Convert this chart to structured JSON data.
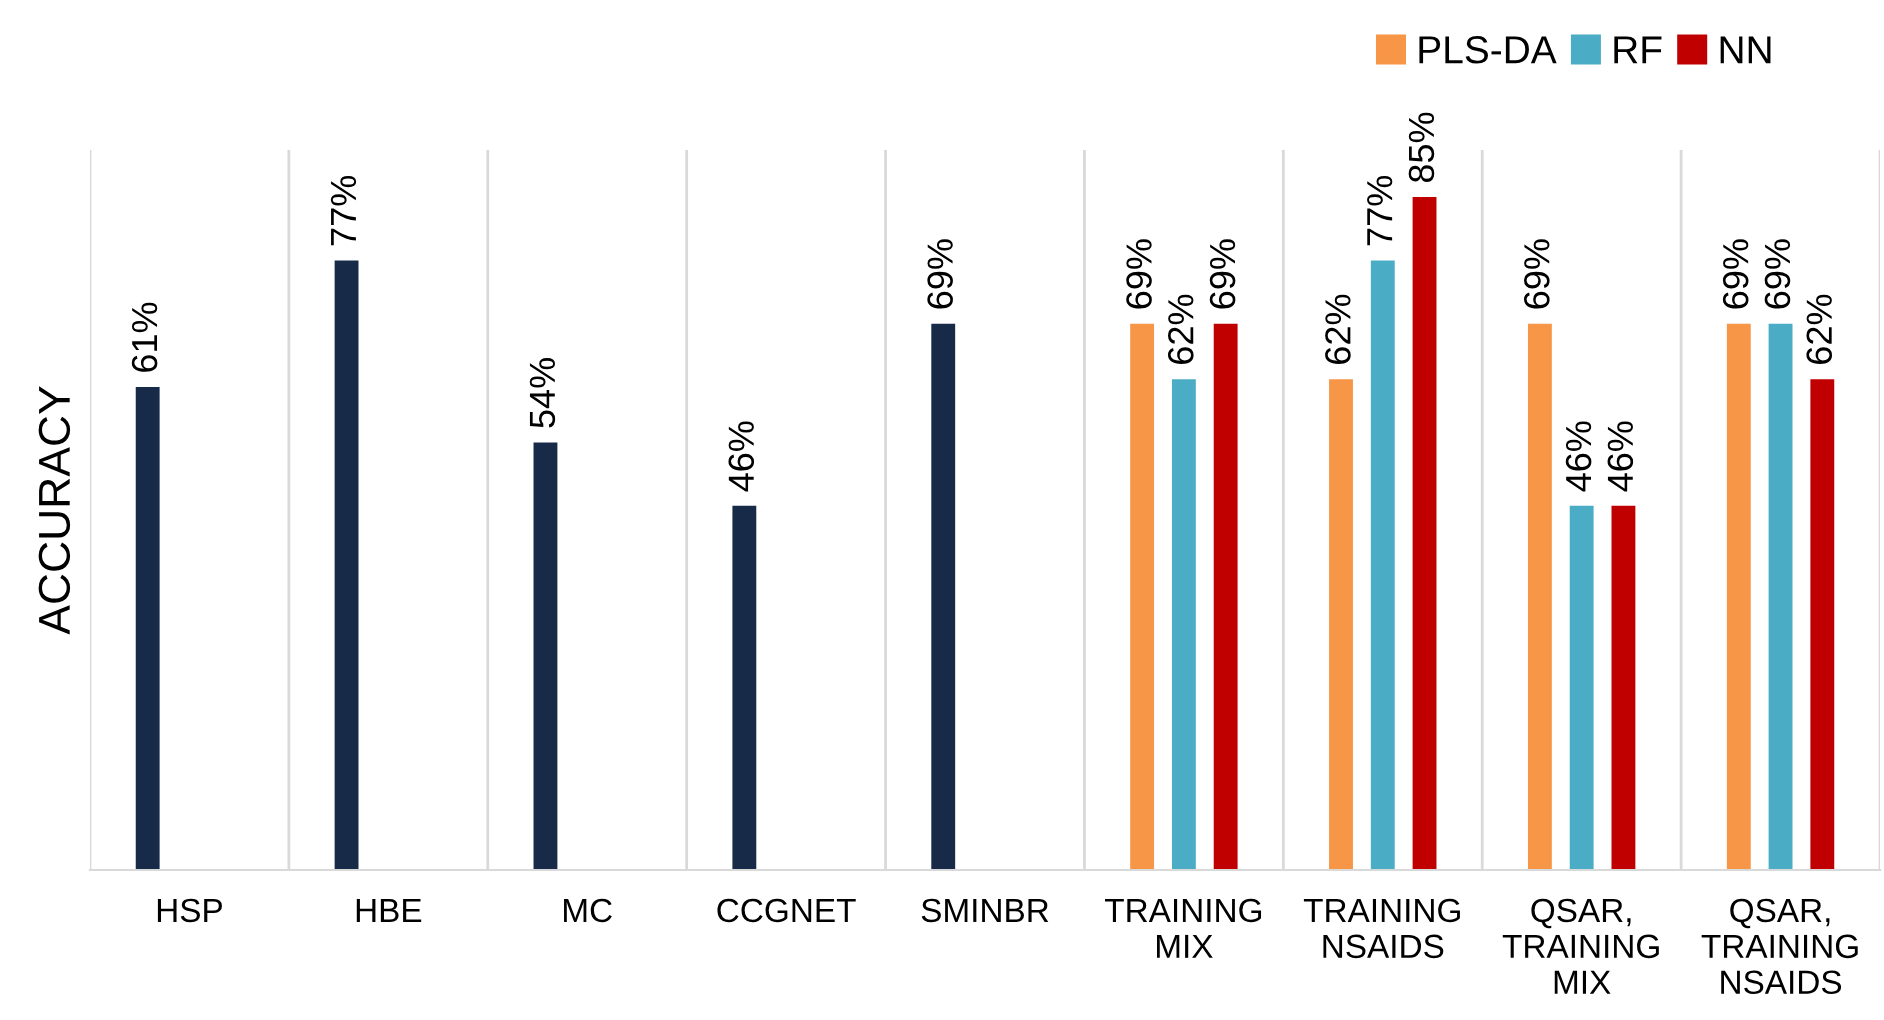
{
  "chart_data": {
    "type": "bar",
    "ylabel": "ACCURACY",
    "categories": [
      "HSP",
      "HBE",
      "MC",
      "CCGNET",
      "SMINBR",
      "TRAINING\nMIX",
      "TRAINING\nNSAIDS",
      "QSAR,\nTRAINING\nMIX",
      "QSAR,\nTRAINING\nNSAIDS"
    ],
    "series": [
      {
        "name": "PLS-DA",
        "color": "#f79646",
        "colors": [
          "#172b49",
          "#172b49",
          "#172b49",
          "#172b49",
          "#172b49",
          "#f79646",
          "#f79646",
          "#f79646",
          "#f79646"
        ],
        "values": [
          61,
          77,
          54,
          46,
          69,
          69,
          62,
          69,
          69
        ],
        "value_labels": [
          "61%",
          "77%",
          "54%",
          "46%",
          "69%",
          "69%",
          "62%",
          "69%",
          "69%"
        ]
      },
      {
        "name": "RF",
        "color": "#4bacc6",
        "values": [
          null,
          null,
          null,
          null,
          null,
          62,
          77,
          46,
          69
        ],
        "value_labels": [
          null,
          null,
          null,
          null,
          null,
          "62%",
          "77%",
          "46%",
          "69%"
        ]
      },
      {
        "name": "NN",
        "color": "#c00000",
        "values": [
          null,
          null,
          null,
          null,
          null,
          69,
          85,
          46,
          62
        ],
        "value_labels": [
          null,
          null,
          null,
          null,
          null,
          "69%",
          "85%",
          "46%",
          "62%"
        ]
      }
    ],
    "grid": "x",
    "legend": "top right"
  }
}
